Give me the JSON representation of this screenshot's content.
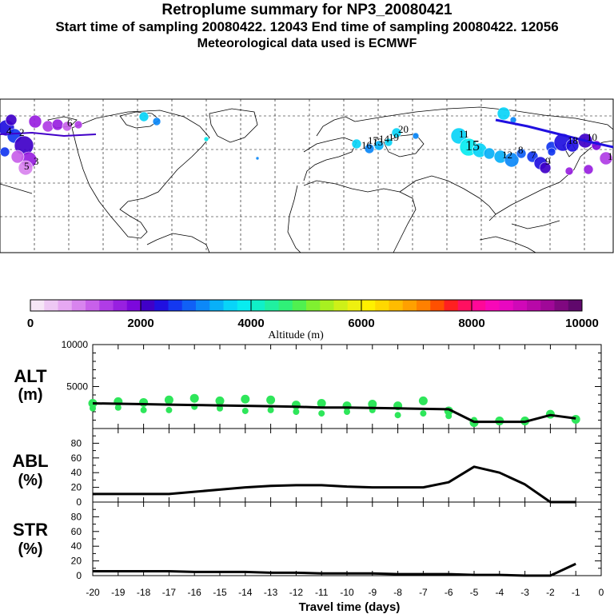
{
  "header": {
    "title": "Retroplume summary for NP3_20080421",
    "subtitle_line1": "Start time of sampling 20080422. 12043     End time of sampling 20080422. 12056",
    "subtitle_line2": "Meteorological data used is ECMWF"
  },
  "colorbar": {
    "colors": [
      "#f6e6f6",
      "#eec8f4",
      "#e6a8f2",
      "#d884ee",
      "#c860ea",
      "#b03ce6",
      "#9820e0",
      "#7c08dc",
      "#4000c8",
      "#2010e0",
      "#1438f0",
      "#1060f6",
      "#0c88f8",
      "#08b0f8",
      "#08d4f8",
      "#08ecf0",
      "#10f0c8",
      "#20f0a0",
      "#30f078",
      "#50f050",
      "#80f030",
      "#a8f020",
      "#cef018",
      "#eef010",
      "#fff000",
      "#ffd800",
      "#ffbc00",
      "#ffa000",
      "#ff8000",
      "#ff5000",
      "#ff2020",
      "#ff1060",
      "#ff0898",
      "#f808b8",
      "#e808c0",
      "#d008b8",
      "#b808a8",
      "#a00898",
      "#800880",
      "#60086c"
    ],
    "tick_labels": [
      "0",
      "2000",
      "4000",
      "6000",
      "8000",
      "10000"
    ],
    "label": "Altitude (m)"
  },
  "map": {
    "labels": [
      {
        "text": "1",
        "color": "#2040e0"
      },
      {
        "text": "2",
        "color": "#8040e0"
      },
      {
        "text": "3",
        "color": "#4060f0"
      },
      {
        "text": "4",
        "color": "#c060ea"
      },
      {
        "text": "5",
        "color": "#e6a8f2"
      },
      {
        "text": "6",
        "color": "#b03ce6"
      },
      {
        "text": "7",
        "color": "#08b0f8"
      },
      {
        "text": "8",
        "color": "#08d4f8"
      },
      {
        "text": "9",
        "color": "#1060f6"
      },
      {
        "text": "10",
        "color": "#2010e0"
      },
      {
        "text": "11",
        "color": "#08d4f8"
      },
      {
        "text": "12",
        "color": "#0c88f8"
      },
      {
        "text": "13",
        "color": "#1060f6"
      },
      {
        "text": "14",
        "color": "#08b0f8"
      },
      {
        "text": "15",
        "color": "#08ecf0"
      },
      {
        "text": "16",
        "color": "#0c88f8"
      },
      {
        "text": "17",
        "color": "#08b0f8"
      },
      {
        "text": "18",
        "color": "#1438f0"
      },
      {
        "text": "19",
        "color": "#0c88f8"
      },
      {
        "text": "20",
        "color": "#08b0f8"
      }
    ]
  },
  "panels": {
    "alt": {
      "label_top": "ALT",
      "label_bottom": "(m)"
    },
    "abl": {
      "label_top": "ABL",
      "label_bottom": "(%)"
    },
    "str": {
      "label_top": "STR",
      "label_bottom": "(%)"
    }
  },
  "chart_data": [
    {
      "type": "line",
      "title": "ALT (m)",
      "ylim": [
        0,
        10000
      ],
      "ytick_labels": [
        "10000",
        "5000"
      ],
      "x": [
        -20,
        -19,
        -18,
        -17,
        -16,
        -15,
        -14,
        -13,
        -12,
        -11,
        -10,
        -9,
        -8,
        -7,
        -6,
        -5,
        -4,
        -3,
        -2,
        -1
      ],
      "series": [
        {
          "name": "mean altitude",
          "values": [
            3000,
            2950,
            2900,
            2850,
            2800,
            2750,
            2700,
            2650,
            2600,
            2500,
            2500,
            2450,
            2400,
            2350,
            2300,
            800,
            800,
            800,
            1600,
            1200
          ]
        }
      ],
      "scatter": [
        {
          "x": -20,
          "y": [
            3000,
            2400
          ]
        },
        {
          "x": -19,
          "y": [
            3200,
            2500
          ]
        },
        {
          "x": -18,
          "y": [
            3100,
            2200
          ]
        },
        {
          "x": -17,
          "y": [
            3400,
            2200
          ]
        },
        {
          "x": -16,
          "y": [
            3600,
            2600
          ]
        },
        {
          "x": -15,
          "y": [
            3300,
            2400
          ]
        },
        {
          "x": -14,
          "y": [
            3500,
            2100
          ]
        },
        {
          "x": -13,
          "y": [
            3400,
            2200
          ]
        },
        {
          "x": -12,
          "y": [
            2800,
            2000
          ]
        },
        {
          "x": -11,
          "y": [
            3000,
            1800
          ]
        },
        {
          "x": -10,
          "y": [
            2700,
            2000
          ]
        },
        {
          "x": -9,
          "y": [
            2900,
            2200
          ]
        },
        {
          "x": -8,
          "y": [
            2700,
            1600
          ]
        },
        {
          "x": -7,
          "y": [
            3300,
            1800
          ]
        },
        {
          "x": -6,
          "y": [
            2100,
            1500
          ]
        },
        {
          "x": -5,
          "y": [
            700,
            1000
          ]
        },
        {
          "x": -4,
          "y": [
            900
          ]
        },
        {
          "x": -3,
          "y": [
            900
          ]
        },
        {
          "x": -2,
          "y": [
            1700
          ]
        },
        {
          "x": -1,
          "y": [
            1100
          ]
        }
      ]
    },
    {
      "type": "line",
      "title": "ABL (%)",
      "ylim": [
        0,
        100
      ],
      "ytick_labels": [
        "80",
        "60",
        "40",
        "20",
        "0"
      ],
      "x": [
        -20,
        -19,
        -18,
        -17,
        -16,
        -15,
        -14,
        -13,
        -12,
        -11,
        -10,
        -9,
        -8,
        -7,
        -6,
        -5,
        -4,
        -3,
        -2,
        -1
      ],
      "series": [
        {
          "name": "ABL fraction",
          "values": [
            11,
            11,
            11,
            11,
            14,
            17,
            20,
            22,
            23,
            23,
            21,
            20,
            20,
            20,
            27,
            48,
            40,
            24,
            0,
            0
          ]
        }
      ]
    },
    {
      "type": "line",
      "title": "STR (%)",
      "ylim": [
        0,
        100
      ],
      "ytick_labels": [
        "80",
        "60",
        "40",
        "20",
        "0"
      ],
      "x": [
        -20,
        -19,
        -18,
        -17,
        -16,
        -15,
        -14,
        -13,
        -12,
        -11,
        -10,
        -9,
        -8,
        -7,
        -6,
        -5,
        -4,
        -3,
        -2,
        -1
      ],
      "series": [
        {
          "name": "stratosphere fraction",
          "values": [
            6,
            6,
            6,
            6,
            5,
            5,
            5,
            4,
            4,
            3,
            3,
            3,
            2,
            2,
            2,
            1,
            1,
            0,
            0,
            16
          ]
        }
      ],
      "xtick_labels": [
        "-20",
        "-19",
        "-18",
        "-17",
        "-16",
        "-15",
        "-14",
        "-13",
        "-12",
        "-11",
        "-10",
        "-9",
        "-8",
        "-7",
        "-6",
        "-5",
        "-4",
        "-3",
        "-2",
        "-1",
        "0"
      ],
      "xlabel": "Travel time (days)"
    }
  ]
}
